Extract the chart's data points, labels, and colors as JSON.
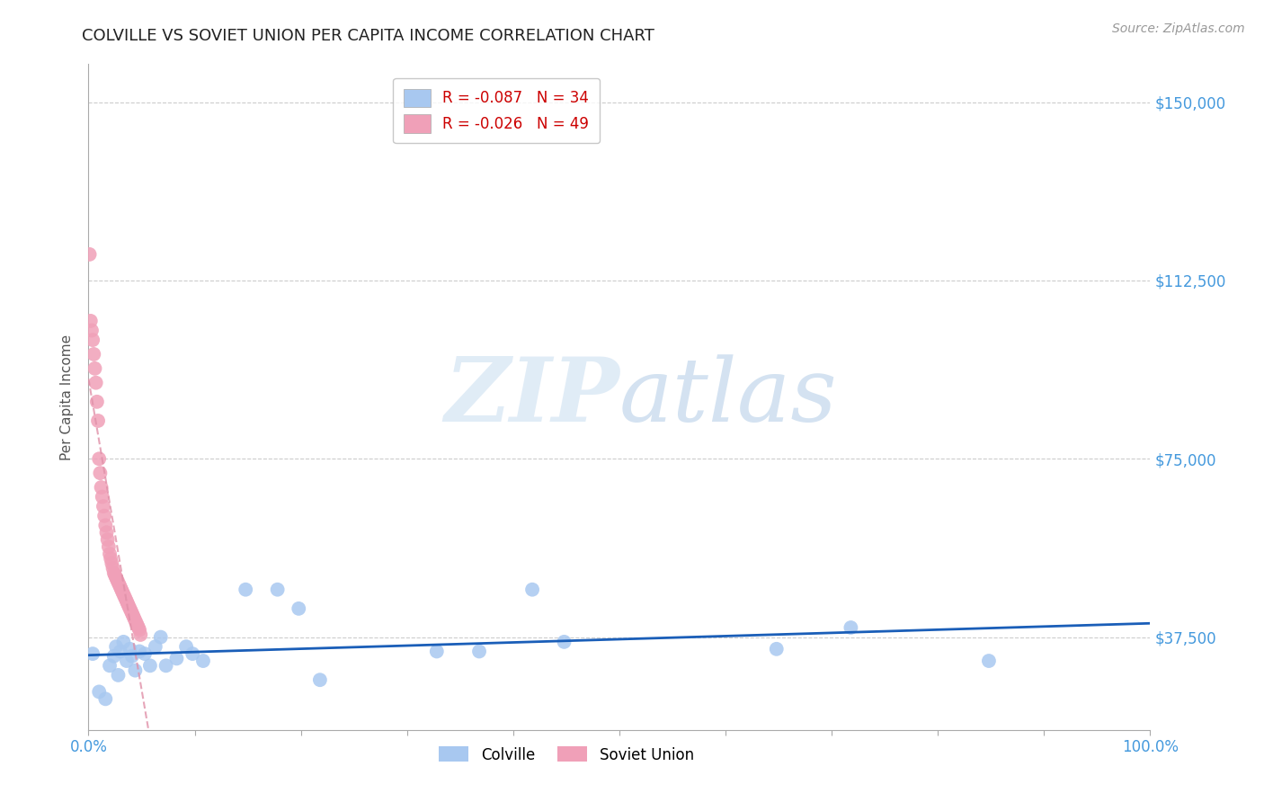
{
  "title": "COLVILLE VS SOVIET UNION PER CAPITA INCOME CORRELATION CHART",
  "source": "Source: ZipAtlas.com",
  "ylabel": "Per Capita Income",
  "xlim": [
    0,
    1.0
  ],
  "ylim": [
    18000,
    158000
  ],
  "yticks": [
    37500,
    75000,
    112500,
    150000
  ],
  "ytick_labels": [
    "$37,500",
    "$75,000",
    "$112,500",
    "$150,000"
  ],
  "xticks": [
    0.0,
    0.1,
    0.2,
    0.3,
    0.4,
    0.5,
    0.6,
    0.7,
    0.8,
    0.9,
    1.0
  ],
  "xtick_labels": [
    "0.0%",
    "",
    "",
    "",
    "",
    "",
    "",
    "",
    "",
    "",
    "100.0%"
  ],
  "colville_color": "#a8c8f0",
  "soviet_color": "#f0a0b8",
  "colville_line_color": "#1a5eb8",
  "soviet_line_color": "#e090a8",
  "colville_R": -0.087,
  "colville_N": 34,
  "soviet_R": -0.026,
  "soviet_N": 49,
  "grid_color": "#cccccc",
  "background_color": "#ffffff",
  "title_color": "#222222",
  "axis_color": "#555555",
  "right_label_color": "#4499dd",
  "colville_x": [
    0.004,
    0.01,
    0.016,
    0.02,
    0.024,
    0.026,
    0.028,
    0.03,
    0.033,
    0.036,
    0.039,
    0.041,
    0.044,
    0.048,
    0.053,
    0.058,
    0.063,
    0.068,
    0.073,
    0.083,
    0.092,
    0.098,
    0.108,
    0.148,
    0.178,
    0.198,
    0.218,
    0.328,
    0.368,
    0.418,
    0.448,
    0.648,
    0.718,
    0.848
  ],
  "colville_y": [
    34000,
    26000,
    24500,
    31500,
    33500,
    35500,
    29500,
    34500,
    36500,
    32500,
    35000,
    33500,
    30500,
    34500,
    34000,
    31500,
    35500,
    37500,
    31500,
    33000,
    35500,
    34000,
    32500,
    47500,
    47500,
    43500,
    28500,
    34500,
    34500,
    47500,
    36500,
    35000,
    39500,
    32500
  ],
  "soviet_x": [
    0.001,
    0.002,
    0.003,
    0.004,
    0.005,
    0.006,
    0.007,
    0.008,
    0.009,
    0.01,
    0.011,
    0.012,
    0.013,
    0.014,
    0.015,
    0.016,
    0.017,
    0.018,
    0.019,
    0.02,
    0.021,
    0.022,
    0.023,
    0.024,
    0.025,
    0.026,
    0.027,
    0.028,
    0.029,
    0.03,
    0.031,
    0.032,
    0.033,
    0.034,
    0.035,
    0.036,
    0.037,
    0.038,
    0.039,
    0.04,
    0.041,
    0.042,
    0.043,
    0.044,
    0.045,
    0.046,
    0.047,
    0.048,
    0.049
  ],
  "soviet_y": [
    118000,
    104000,
    102000,
    100000,
    97000,
    94000,
    91000,
    87000,
    83000,
    75000,
    72000,
    69000,
    67000,
    65000,
    63000,
    61000,
    59500,
    58000,
    56500,
    55000,
    54000,
    53000,
    52000,
    51000,
    50500,
    50000,
    49500,
    49000,
    48500,
    48000,
    47500,
    47000,
    46500,
    46000,
    45500,
    45000,
    44500,
    44000,
    43500,
    43000,
    42500,
    42000,
    41500,
    41000,
    40500,
    40000,
    39500,
    39000,
    38000
  ],
  "watermark_zip": "ZIP",
  "watermark_atlas": "atlas",
  "legend_box_color": "#ffffff",
  "legend_border_color": "#bbbbbb"
}
